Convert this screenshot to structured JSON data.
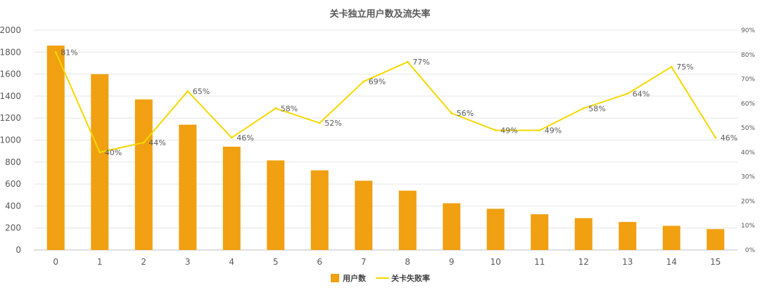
{
  "chart_data": {
    "type": "bar+line",
    "title": "关卡独立用户数及流失率",
    "categories": [
      "0",
      "1",
      "2",
      "3",
      "4",
      "5",
      "6",
      "7",
      "8",
      "9",
      "10",
      "11",
      "12",
      "13",
      "14",
      "15"
    ],
    "series": [
      {
        "name": "用户数",
        "type": "bar",
        "axis": "left",
        "color": "#F0A010",
        "values": [
          1860,
          1600,
          1370,
          1140,
          940,
          815,
          725,
          630,
          540,
          425,
          375,
          325,
          290,
          255,
          220,
          190
        ]
      },
      {
        "name": "关卡失败率",
        "type": "line",
        "axis": "right",
        "color": "#F5D800",
        "values": [
          0.81,
          0.4,
          0.44,
          0.65,
          0.46,
          0.58,
          0.52,
          0.69,
          0.77,
          0.56,
          0.49,
          0.49,
          0.58,
          0.64,
          0.75,
          0.46
        ],
        "labels": [
          "81%",
          "40%",
          "44%",
          "65%",
          "46%",
          "58%",
          "52%",
          "69%",
          "77%",
          "56%",
          "49%",
          "49%",
          "58%",
          "64%",
          "75%",
          "46%"
        ]
      }
    ],
    "y_left": {
      "range": [
        0,
        2000
      ],
      "ticks": [
        "0",
        "200",
        "400",
        "600",
        "800",
        "1000",
        "1200",
        "1400",
        "1600",
        "1800",
        "2000"
      ]
    },
    "y_right": {
      "range": [
        0,
        0.9
      ],
      "ticks": [
        "0%",
        "10%",
        "20%",
        "30%",
        "40%",
        "50%",
        "60%",
        "70%",
        "80%",
        "90%"
      ]
    },
    "grid": true,
    "legend_position": "bottom"
  }
}
